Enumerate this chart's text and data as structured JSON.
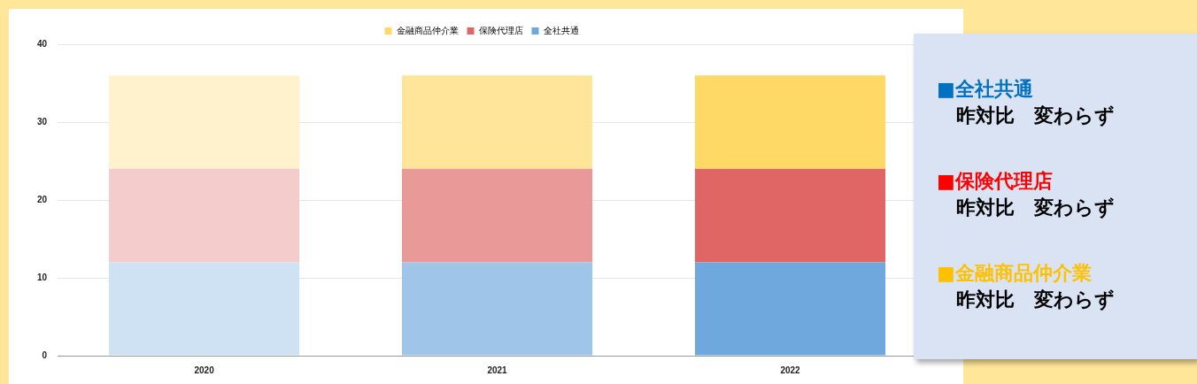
{
  "chart_data": [
    {
      "type": "bar",
      "stacked": true,
      "categories": [
        "2020",
        "2021",
        "2022"
      ],
      "series": [
        {
          "name": "全社共通",
          "color": "#6fa8dc",
          "colors": [
            "#cfe2f3",
            "#9fc5e8",
            "#6fa8dc"
          ],
          "values": [
            12,
            12,
            12
          ]
        },
        {
          "name": "保険代理店",
          "color": "#e06666",
          "colors": [
            "#f4cccc",
            "#ea9999",
            "#e06666"
          ],
          "values": [
            12,
            12,
            12
          ]
        },
        {
          "name": "金融商品仲介業",
          "color": "#ffd966",
          "colors": [
            "#fff2cc",
            "#ffe599",
            "#ffd966"
          ],
          "values": [
            12,
            12,
            12
          ]
        }
      ],
      "ylim": [
        0,
        40
      ],
      "yticks": [
        0,
        10,
        20,
        30,
        40
      ],
      "grid": "y",
      "legend": "top"
    },
    {
      "type": "other",
      "categories": [
        "■全社共通",
        "■保険代理店",
        "■金融商品仲介業"
      ],
      "colors": [
        "#0070c0",
        "#ff0000",
        "#ffc000"
      ],
      "annotations": [
        "昨対比　変わらず",
        "昨対比　変わらず",
        "昨対比　変わらず"
      ]
    }
  ]
}
